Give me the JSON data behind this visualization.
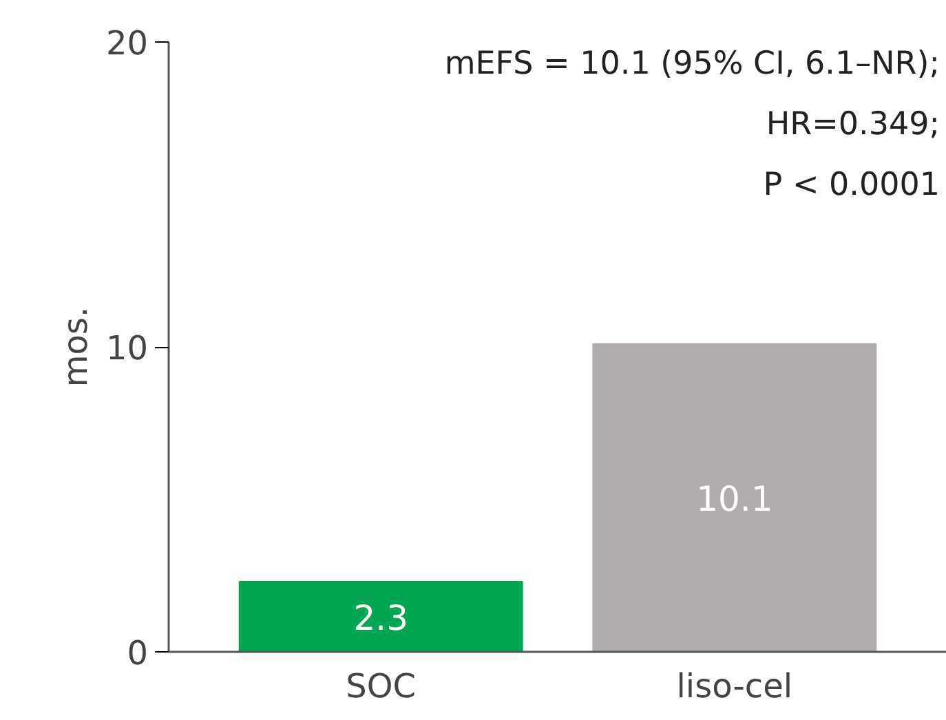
{
  "chart_data": {
    "type": "bar",
    "categories": [
      "SOC",
      "liso-cel"
    ],
    "values": [
      2.3,
      10.1
    ],
    "colors": [
      "#00a651",
      "#b1acac"
    ],
    "ylabel": "mos.",
    "ylim": [
      0,
      20
    ],
    "yticks": [
      0,
      10,
      20
    ],
    "grid": false,
    "data_labels": true,
    "annotations": [
      "mEFS = 10.1 (95% CI, 6.1–NR);",
      "HR=0.349;",
      "P < 0.0001"
    ]
  }
}
